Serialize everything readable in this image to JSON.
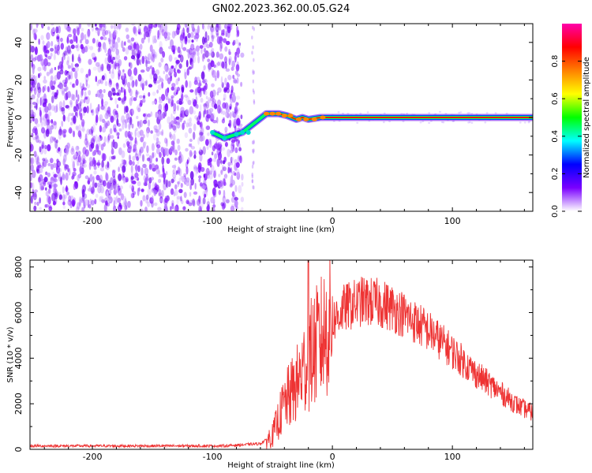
{
  "figure": {
    "title": "GN02.2023.362.00.05.G24"
  },
  "chart_data": [
    {
      "type": "heatmap",
      "xlabel": "Height of straight line (km)",
      "ylabel": "Frequency (Hz)",
      "xlim": [
        -252,
        167
      ],
      "ylim": [
        -50,
        50
      ],
      "xticks": [
        -200,
        -100,
        0,
        100
      ],
      "yticks": [
        -40,
        -20,
        0,
        20,
        40
      ],
      "colorbar": {
        "label": "Normalized spectral amplitude",
        "range": [
          0,
          1
        ],
        "ticks": [
          0.0,
          0.2,
          0.4,
          0.6,
          0.8
        ],
        "colormap": [
          "#ffffff",
          "#7a00ff",
          "#0000ff",
          "#00ffff",
          "#00ff00",
          "#ffff00",
          "#ff8000",
          "#ff0000",
          "#ff00aa"
        ]
      },
      "noise_region": [
        -252,
        -75
      ],
      "signal_trace": [
        {
          "x": -100,
          "f": -8
        },
        {
          "x": -90,
          "f": -11
        },
        {
          "x": -80,
          "f": -9
        },
        {
          "x": -75,
          "f": -8
        },
        {
          "x": -65,
          "f": -3
        },
        {
          "x": -55,
          "f": 2
        },
        {
          "x": -45,
          "f": 2
        },
        {
          "x": -38,
          "f": 1
        },
        {
          "x": -30,
          "f": -1
        },
        {
          "x": -25,
          "f": 0
        },
        {
          "x": -20,
          "f": -1
        },
        {
          "x": -10,
          "f": 0
        },
        {
          "x": 0,
          "f": 0
        },
        {
          "x": 167,
          "f": 0
        }
      ]
    },
    {
      "type": "line",
      "xlabel": "Height of straight line (km)",
      "ylabel": "SNR (10 * v/v)",
      "xlim": [
        -252,
        167
      ],
      "ylim": [
        0,
        8300
      ],
      "xticks": [
        -200,
        -100,
        0,
        100
      ],
      "yticks": [
        0,
        2000,
        4000,
        6000,
        8000
      ],
      "color": "#ee3333",
      "envelope": [
        {
          "x": -252,
          "y": 150
        },
        {
          "x": -150,
          "y": 150
        },
        {
          "x": -90,
          "y": 150
        },
        {
          "x": -60,
          "y": 250
        },
        {
          "x": -50,
          "y": 600
        },
        {
          "x": -45,
          "y": 1300
        },
        {
          "x": -40,
          "y": 2000
        },
        {
          "x": -30,
          "y": 2800
        },
        {
          "x": -20,
          "y": 4000
        },
        {
          "x": -10,
          "y": 4800
        },
        {
          "x": 0,
          "y": 5600
        },
        {
          "x": 10,
          "y": 6200
        },
        {
          "x": 25,
          "y": 6500
        },
        {
          "x": 40,
          "y": 6400
        },
        {
          "x": 50,
          "y": 6200
        },
        {
          "x": 60,
          "y": 5900
        },
        {
          "x": 80,
          "y": 5200
        },
        {
          "x": 100,
          "y": 4300
        },
        {
          "x": 120,
          "y": 3300
        },
        {
          "x": 140,
          "y": 2500
        },
        {
          "x": 155,
          "y": 1900
        },
        {
          "x": 167,
          "y": 1600
        }
      ],
      "peak": {
        "x": -20,
        "y": 8300
      }
    }
  ]
}
